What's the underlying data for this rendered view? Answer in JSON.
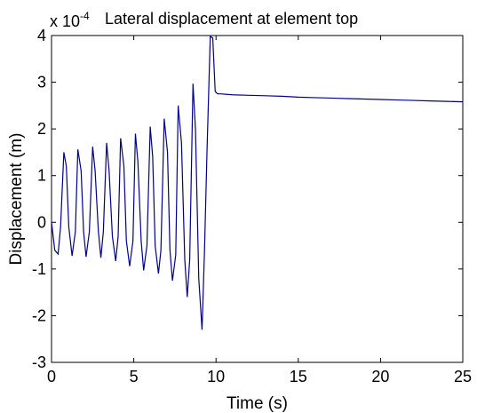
{
  "chart_data": {
    "type": "line",
    "title": "Lateral displacement at element top",
    "xlabel": "Time (s)",
    "ylabel": "Displacement (m)",
    "y_scale_factor": "x 10",
    "y_scale_exponent": "-4",
    "xlim": [
      0,
      25
    ],
    "ylim": [
      -3,
      4
    ],
    "xticks": [
      0,
      5,
      10,
      15,
      20,
      25
    ],
    "yticks": [
      -3,
      -2,
      -1,
      0,
      1,
      2,
      3,
      4
    ],
    "grid": false,
    "line_color": "#00008b",
    "series": [
      {
        "name": "",
        "x": [
          0,
          0.2,
          0.4,
          0.55,
          0.75,
          0.9,
          1.05,
          1.25,
          1.45,
          1.6,
          1.8,
          1.95,
          2.1,
          2.3,
          2.5,
          2.65,
          2.85,
          3.0,
          3.15,
          3.35,
          3.5,
          3.7,
          3.9,
          4.05,
          4.2,
          4.4,
          4.55,
          4.75,
          4.95,
          5.1,
          5.25,
          5.45,
          5.6,
          5.8,
          6.0,
          6.15,
          6.3,
          6.5,
          6.65,
          6.85,
          7.05,
          7.2,
          7.35,
          7.55,
          7.7,
          7.9,
          8.1,
          8.25,
          8.4,
          8.6,
          8.75,
          8.95,
          9.15,
          9.3,
          9.45,
          9.65,
          9.8,
          9.95,
          10.1,
          10.3,
          11,
          12,
          13,
          14,
          15,
          16,
          17,
          18,
          19,
          20,
          21,
          22,
          23,
          24,
          25
        ],
        "y": [
          0,
          -0.6,
          -0.68,
          -0.1,
          1.5,
          1.2,
          -0.1,
          -0.72,
          -0.2,
          1.56,
          1.1,
          -0.2,
          -0.74,
          -0.2,
          1.62,
          1.1,
          -0.2,
          -0.76,
          -0.2,
          1.7,
          1.1,
          -0.3,
          -0.83,
          -0.3,
          1.8,
          1.2,
          -0.4,
          -0.94,
          -0.4,
          1.9,
          1.3,
          -0.4,
          -1.03,
          -0.5,
          2.05,
          1.4,
          -0.5,
          -1.1,
          -0.6,
          2.22,
          1.5,
          -0.6,
          -1.25,
          -0.7,
          2.5,
          1.7,
          -0.8,
          -1.6,
          -0.8,
          2.97,
          2.0,
          -1.2,
          -2.3,
          -0.6,
          1.5,
          3.98,
          3.95,
          2.8,
          2.75,
          2.75,
          2.73,
          2.72,
          2.71,
          2.7,
          2.68,
          2.67,
          2.66,
          2.65,
          2.64,
          2.63,
          2.62,
          2.61,
          2.6,
          2.59,
          2.58
        ]
      }
    ]
  }
}
